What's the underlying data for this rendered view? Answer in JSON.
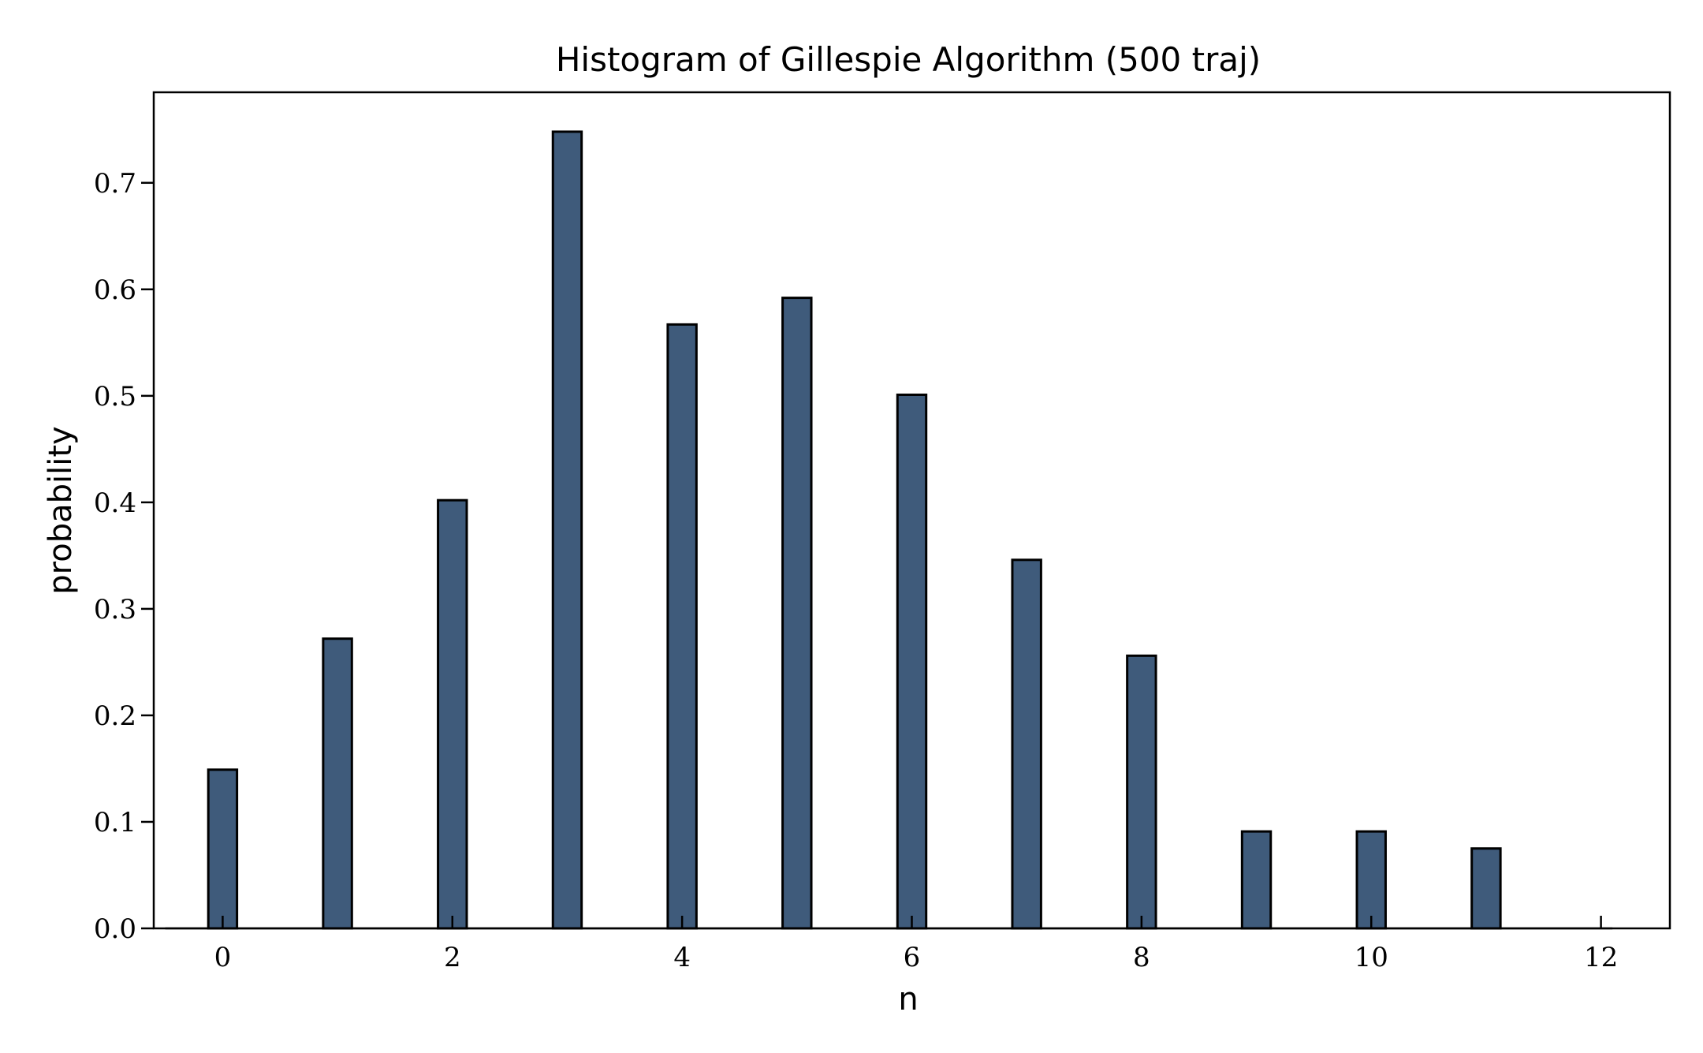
{
  "chart_data": {
    "type": "bar",
    "title": "Histogram of Gillespie Algorithm (500 traj)",
    "xlabel": "n",
    "ylabel": "probability",
    "x": [
      0,
      1,
      2,
      3,
      4,
      5,
      6,
      7,
      8,
      9,
      10,
      11
    ],
    "values": [
      0.149,
      0.272,
      0.402,
      0.748,
      0.567,
      0.592,
      0.501,
      0.346,
      0.256,
      0.091,
      0.091,
      0.075
    ],
    "bar_width": 0.25,
    "xlim": [
      -0.6,
      12.6
    ],
    "ylim": [
      0,
      0.785
    ],
    "xticks": [
      0,
      2,
      4,
      6,
      8,
      10,
      12
    ],
    "xtick_labels": [
      "0",
      "2",
      "4",
      "6",
      "8",
      "10",
      "12"
    ],
    "yticks": [
      0.0,
      0.1,
      0.2,
      0.3,
      0.4,
      0.5,
      0.6,
      0.7
    ],
    "ytick_labels": [
      "0.0",
      "0.1",
      "0.2",
      "0.3",
      "0.4",
      "0.5",
      "0.6",
      "0.7"
    ],
    "grid": false,
    "colors": {
      "bar_fill": "#3f5b7b",
      "bar_edge": "#000000"
    }
  }
}
